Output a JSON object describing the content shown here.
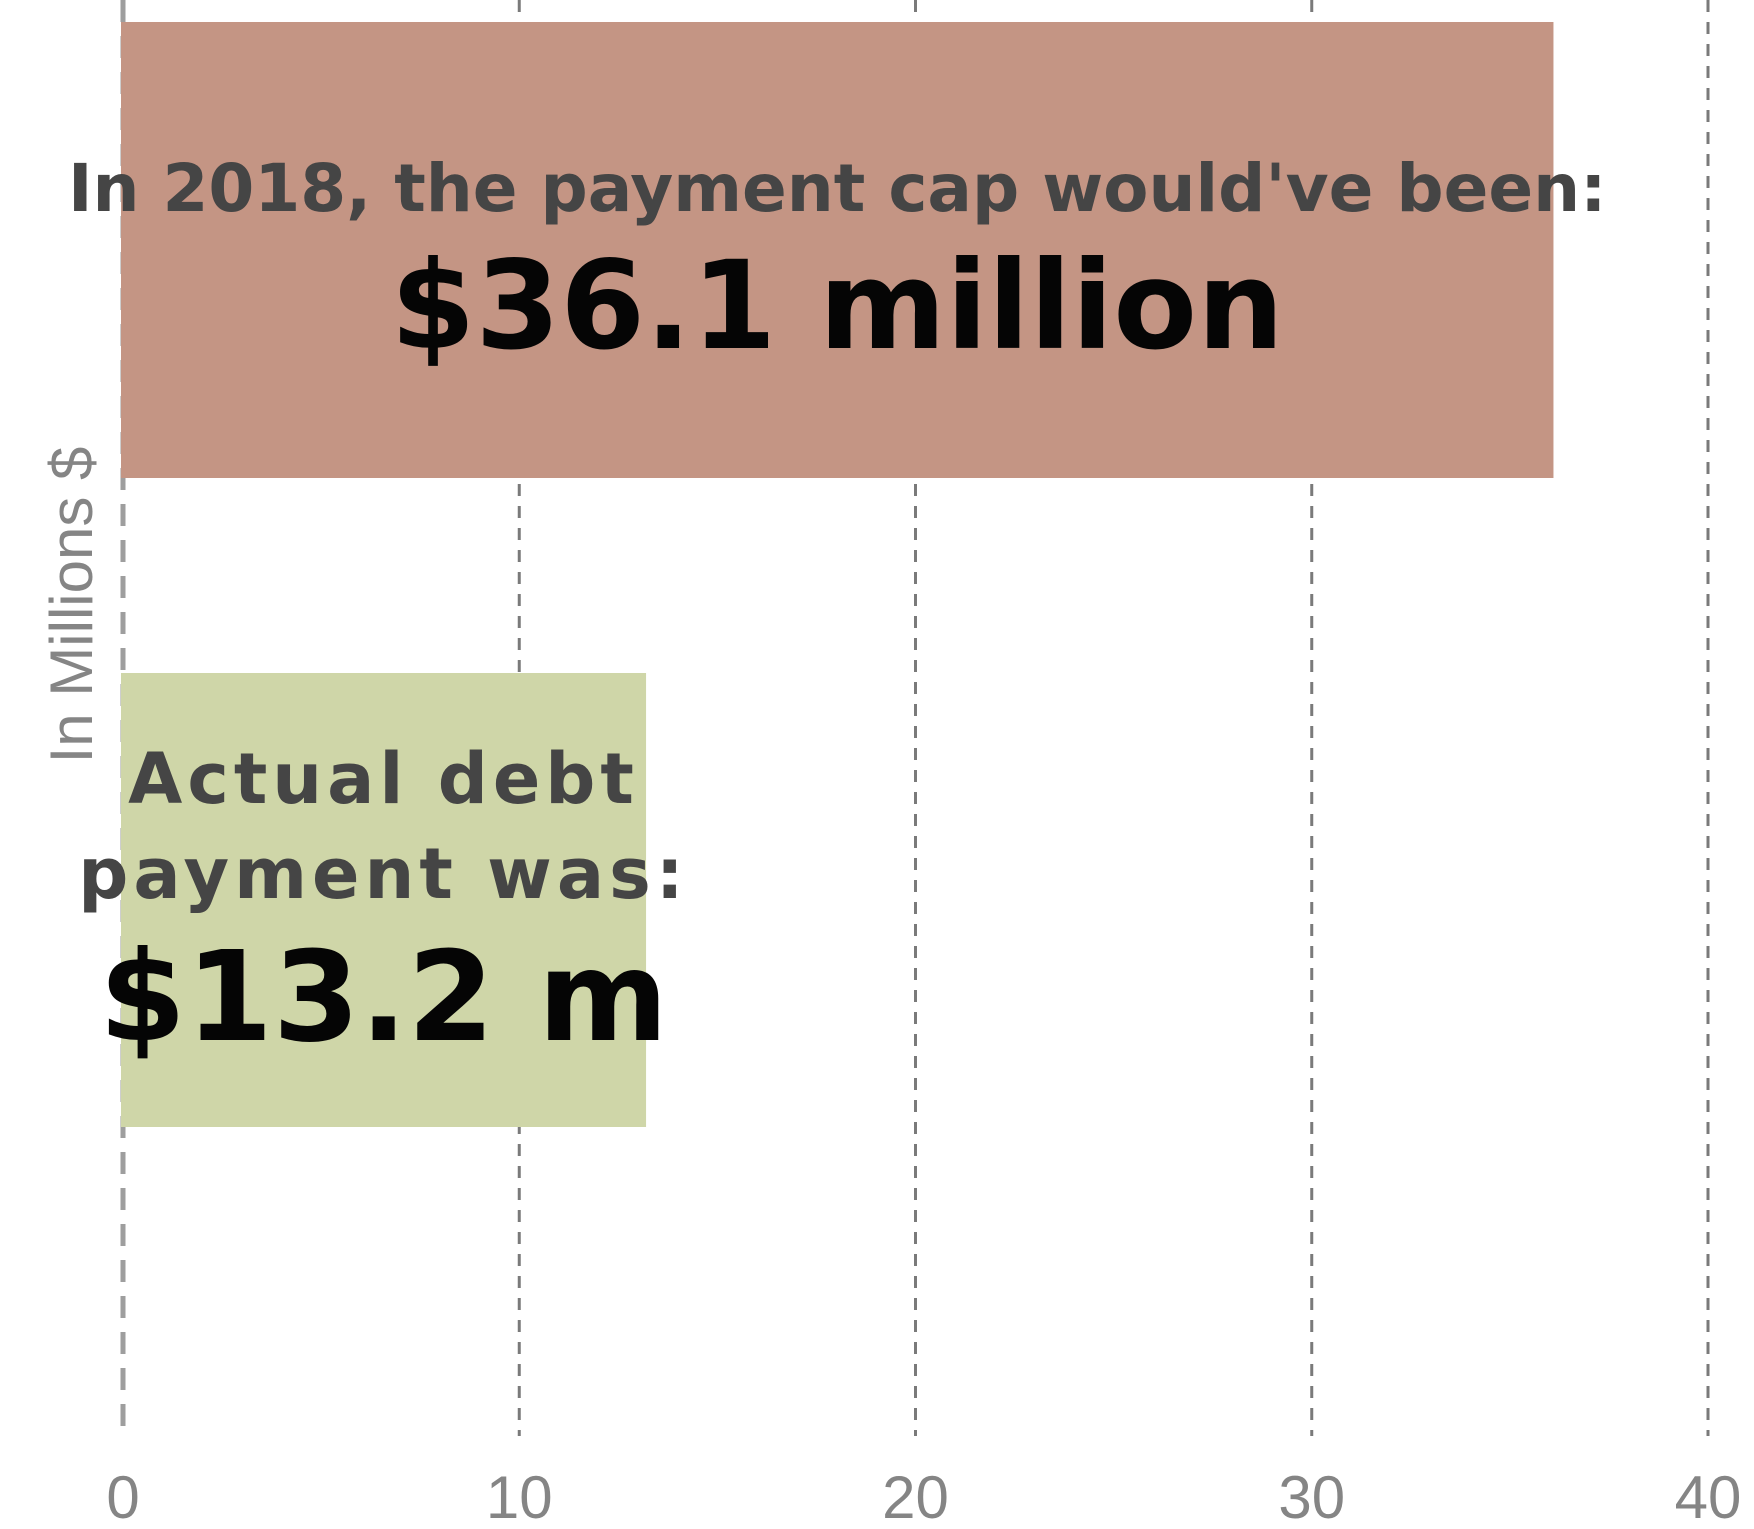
{
  "chart_data": {
    "type": "bar",
    "orientation": "horizontal",
    "title": "",
    "xlabel": "",
    "ylabel": "In Millions $",
    "xlim": [
      0,
      40
    ],
    "x_ticks": [
      "0",
      "10",
      "20",
      "30",
      "40"
    ],
    "grid": "vertical-dashed",
    "bars": [
      {
        "name": "payment-cap",
        "value": 36.1,
        "color": "#c49584",
        "label_lines": [
          "In 2018, the payment cap would've been:"
        ],
        "value_label": "$36.1 million"
      },
      {
        "name": "actual-debt-payment",
        "value": 13.2,
        "color": "#cfd6a8",
        "label_lines": [
          "Actual debt",
          "payment was:"
        ],
        "value_label": "$13.2 m"
      }
    ]
  }
}
